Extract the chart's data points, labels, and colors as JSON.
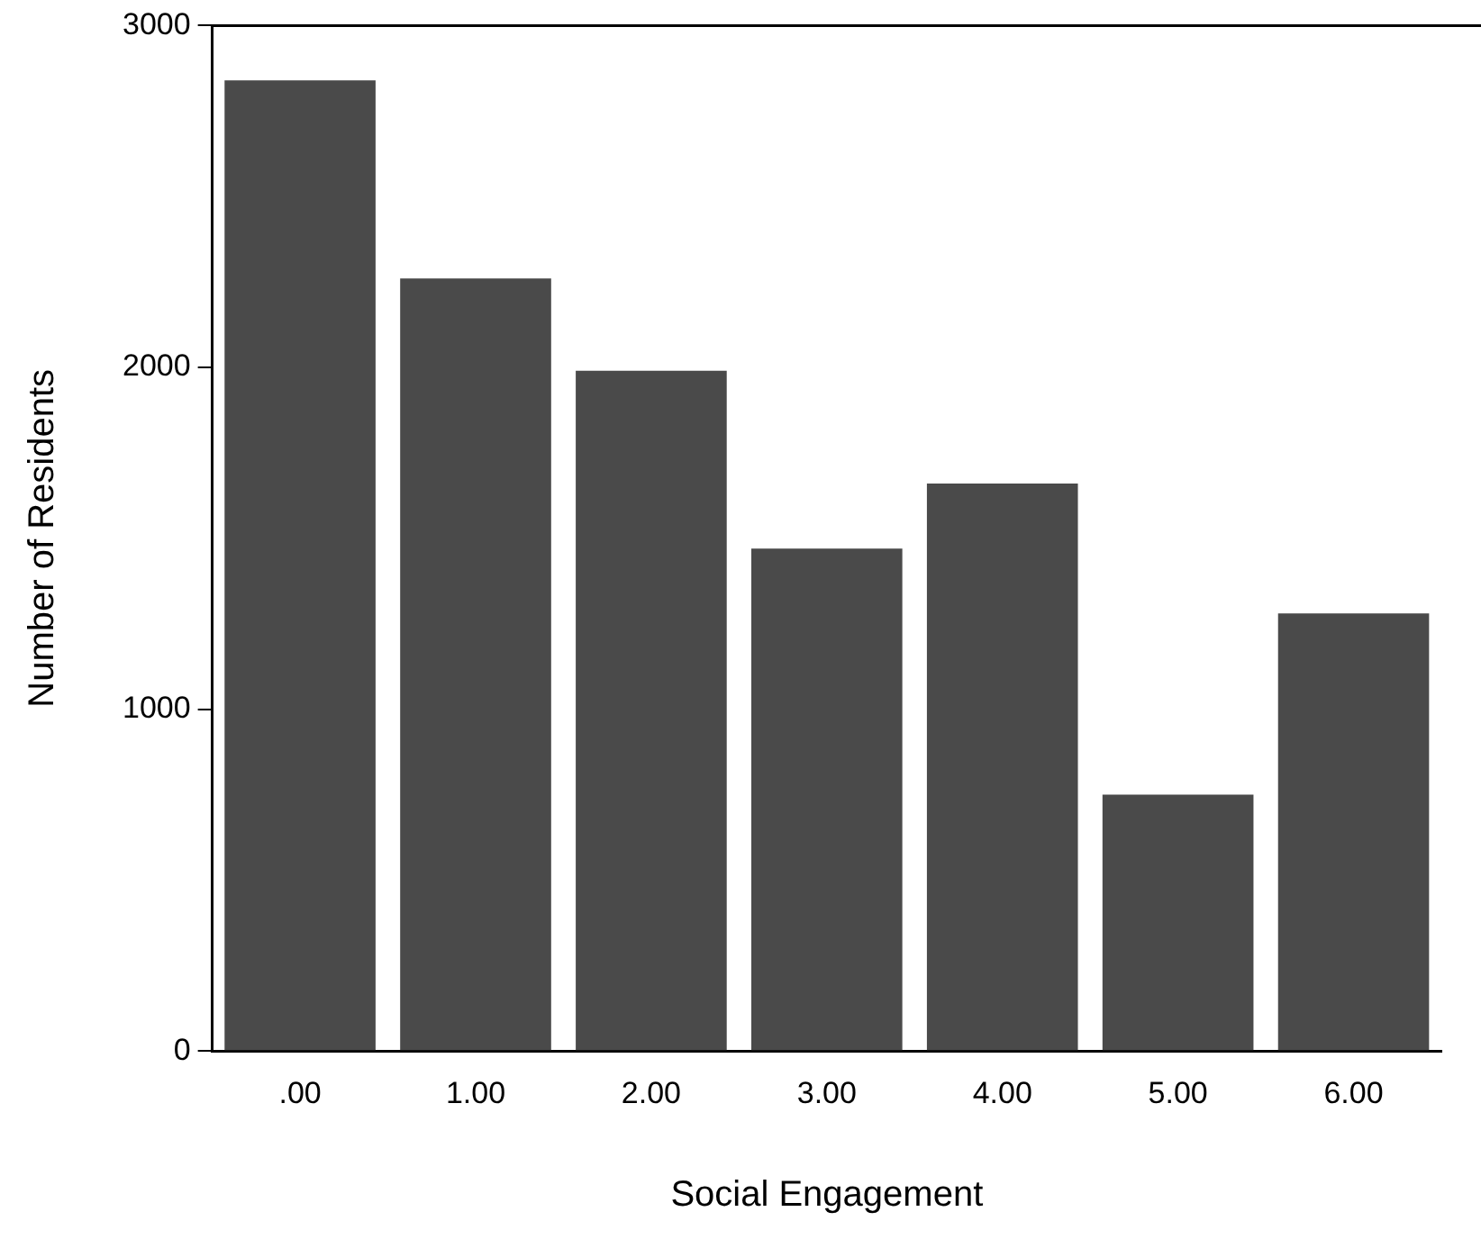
{
  "chart_data": {
    "type": "bar",
    "xlabel": "Social Engagement",
    "ylabel": "Number of Residents",
    "categories": [
      ".00",
      "1.00",
      "2.00",
      "3.00",
      "4.00",
      "5.00",
      "6.00"
    ],
    "values": [
      2840,
      2260,
      1990,
      1470,
      1660,
      750,
      1280
    ],
    "color": "#4a4a4a",
    "ylim": [
      0,
      3000
    ],
    "yticks": [
      0,
      1000,
      2000,
      3000
    ],
    "grid": false,
    "legend": false
  }
}
